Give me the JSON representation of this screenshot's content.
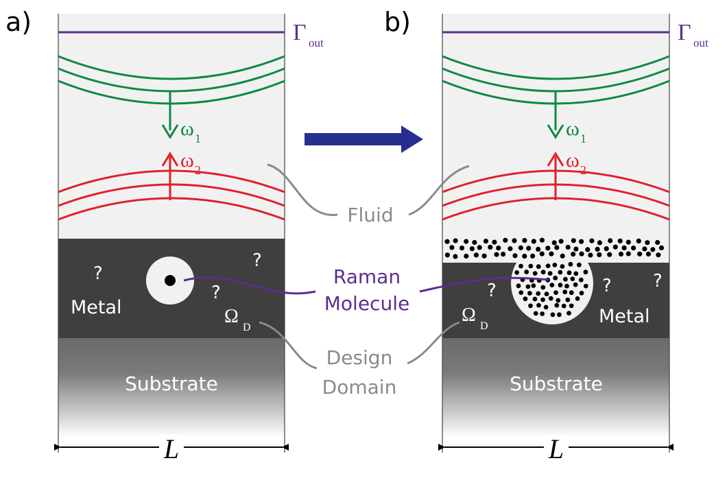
{
  "panels": {
    "a": {
      "label": "a)",
      "gamma_symbol": "Γ",
      "gamma_sub": "out",
      "omega1_symbol": "ω",
      "omega1_sub": "1",
      "omega2_symbol": "ω",
      "omega2_sub": "2",
      "metal_label": "Metal",
      "substrate_label": "Substrate",
      "question_mark": "?",
      "design_symbol": "Ω",
      "design_sub": "D",
      "length_label": "L"
    },
    "b": {
      "label": "b)",
      "gamma_symbol": "Γ",
      "gamma_sub": "out",
      "omega1_symbol": "ω",
      "omega1_sub": "1",
      "omega2_symbol": "ω",
      "omega2_sub": "2",
      "metal_label": "Metal",
      "substrate_label": "Substrate",
      "question_mark": "?",
      "design_symbol": "Ω",
      "design_sub": "D",
      "length_label": "L"
    }
  },
  "center_labels": {
    "fluid": "Fluid",
    "raman_line1": "Raman",
    "raman_line2": "Molecule",
    "design_line1": "Design",
    "design_line2": "Domain"
  },
  "colors": {
    "fluid_bg": "#f2f1f2",
    "metal": "#3f3f3f",
    "boundary": "#5b2d8e",
    "incident_wave": "#0d8a43",
    "scattered_wave": "#e0202a",
    "arrow": "#262f8f",
    "pointer_gray": "#8a8a8a",
    "molecule": "#000000"
  }
}
